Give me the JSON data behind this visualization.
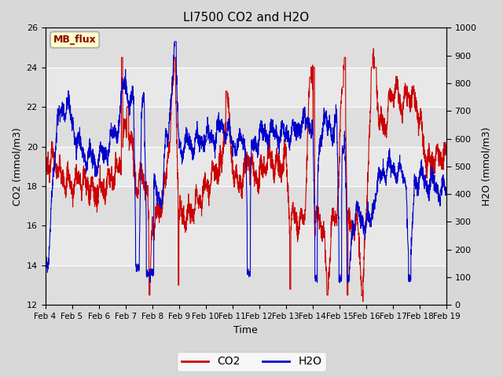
{
  "title": "LI7500 CO2 and H2O",
  "xlabel": "Time",
  "ylabel_left": "CO2 (mmol/m3)",
  "ylabel_right": "H2O (mmol/m3)",
  "ylim_left": [
    12,
    26
  ],
  "ylim_right": [
    0,
    1000
  ],
  "yticks_left": [
    12,
    14,
    16,
    18,
    20,
    22,
    24,
    26
  ],
  "yticks_right": [
    0,
    100,
    200,
    300,
    400,
    500,
    600,
    700,
    800,
    900,
    1000
  ],
  "co2_color": "#cc0000",
  "h2o_color": "#0000cc",
  "fig_bg": "#d8d8d8",
  "plot_bg": "#e8e8e8",
  "grid_color": "#ffffff",
  "annotation_text": "MB_flux",
  "annotation_bg": "#ffffcc",
  "annotation_edge": "#aaaaaa",
  "annotation_color": "#880000",
  "legend_co2": "CO2",
  "legend_h2o": "H2O",
  "n_points": 3000,
  "x_start": 4.0,
  "x_end": 19.0,
  "xticklabels": [
    "Feb 4",
    "Feb 5",
    "Feb 6",
    "Feb 7",
    "Feb 8",
    "Feb 9",
    "Feb 10",
    "Feb 11",
    "Feb 12",
    "Feb 13",
    "Feb 14",
    "Feb 15",
    "Feb 16",
    "Feb 17",
    "Feb 18",
    "Feb 19"
  ],
  "xtick_positions": [
    4,
    5,
    6,
    7,
    8,
    9,
    10,
    11,
    12,
    13,
    14,
    15,
    16,
    17,
    18,
    19
  ]
}
